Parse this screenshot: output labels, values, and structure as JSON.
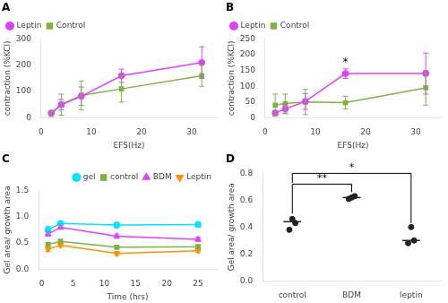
{
  "chart_data": [
    {
      "type": "line",
      "title": "A",
      "x": [
        2,
        4,
        8,
        16,
        32
      ],
      "series": [
        {
          "name": "Leptin",
          "color": "#e040fb",
          "marker": "circle",
          "values": [
            18,
            50,
            82,
            160,
            210
          ],
          "errors": [
            8,
            20,
            35,
            25,
            60
          ]
        },
        {
          "name": "Control",
          "color": "#7cb342",
          "marker": "square",
          "values": [
            15,
            50,
            85,
            110,
            160
          ],
          "errors": [
            10,
            40,
            55,
            50,
            40
          ]
        }
      ],
      "x_label": "EFS(Hz)",
      "y_label": "contraction (%KCl)",
      "xlim": [
        0,
        35
      ],
      "xticks": [
        0,
        10,
        20,
        30
      ],
      "ylim": [
        0,
        300
      ],
      "yticks": [
        0,
        100,
        200,
        300
      ],
      "legend": "upper left",
      "grid": false
    },
    {
      "type": "line",
      "title": "B",
      "x": [
        2,
        4,
        8,
        16,
        32
      ],
      "series": [
        {
          "name": "Leptin",
          "color": "#e040fb",
          "marker": "circle",
          "values": [
            15,
            28,
            52,
            140,
            140
          ],
          "errors": [
            8,
            15,
            25,
            15,
            65
          ]
        },
        {
          "name": "Control",
          "color": "#7cb342",
          "marker": "square",
          "values": [
            40,
            45,
            50,
            48,
            95
          ],
          "errors": [
            35,
            30,
            40,
            20,
            55
          ]
        }
      ],
      "x_label": "EFS(Hz)",
      "y_label": "contraction (%KCl)",
      "xlim": [
        0,
        35
      ],
      "xticks": [
        0,
        10,
        20,
        30
      ],
      "ylim": [
        0,
        250
      ],
      "yticks": [
        0,
        50,
        100,
        150,
        200,
        250
      ],
      "annotations": [
        {
          "text": "*",
          "x": 16,
          "y": 158
        }
      ],
      "legend": "upper left",
      "grid": false
    },
    {
      "type": "line",
      "title": "C",
      "x": [
        1,
        3,
        12,
        25
      ],
      "series": [
        {
          "name": "gel",
          "color": "#00e5ff",
          "marker": "circle",
          "values": [
            0.75,
            0.87,
            0.84,
            0.85
          ],
          "errors": [
            0.07,
            0.04,
            0.05,
            0.05
          ]
        },
        {
          "name": "control",
          "color": "#7cb342",
          "marker": "square",
          "values": [
            0.47,
            0.53,
            0.42,
            0.43
          ],
          "errors": [
            0.04,
            0.04,
            0.03,
            0.03
          ]
        },
        {
          "name": "BDM",
          "color": "#e040fb",
          "marker": "triangle",
          "values": [
            0.67,
            0.8,
            0.63,
            0.57
          ],
          "errors": [
            0.04,
            0.04,
            0.04,
            0.04
          ]
        },
        {
          "name": "Leptin",
          "color": "#ff8f00",
          "marker": "triangle_down",
          "values": [
            0.38,
            0.46,
            0.3,
            0.35
          ],
          "errors": [
            0.04,
            0.04,
            0.04,
            0.03
          ]
        }
      ],
      "x_label": "Time (hrs)",
      "y_label": "Gel area/ growth area",
      "xlim": [
        -0.5,
        28
      ],
      "xticks": [
        0,
        5,
        10,
        15,
        20,
        25
      ],
      "ylim": [
        0,
        1.5
      ],
      "yticks": [
        {
          "value": 0,
          "label": "0.0"
        },
        0.5,
        {
          "value": 1,
          "label": "1.0"
        },
        1.5
      ],
      "legend": "upper right",
      "grid": false
    },
    {
      "type": "strip",
      "title": "D",
      "categories": [
        "control",
        "BDM",
        "leptin"
      ],
      "points": [
        [
          0.46,
          0.43,
          0.38
        ],
        [
          0.62,
          0.63,
          0.61
        ],
        [
          0.4,
          0.3,
          0.28
        ]
      ],
      "means": [
        0.44,
        0.62,
        0.3
      ],
      "color": "#222222",
      "y_label": "Gel area/ growth area",
      "ylim": [
        0.0,
        0.8
      ],
      "yticks": [
        {
          "value": 0,
          "label": "0.0"
        },
        0.2,
        0.4,
        0.6,
        0.8
      ],
      "annotations": [
        {
          "text": "**",
          "from": "control",
          "to": "BDM",
          "y": 0.72,
          "legs": [
            0.5,
            0.66
          ]
        },
        {
          "text": "*",
          "from": "control",
          "to": "leptin",
          "y": 0.8,
          "legs": [
            0.73,
            0.43
          ]
        }
      ],
      "grid": false
    }
  ]
}
